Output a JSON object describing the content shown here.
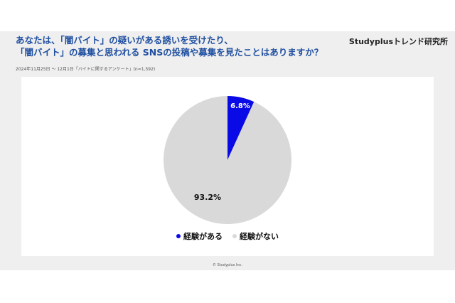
{
  "header": {
    "title_line1": "あなたは、「闇バイト」の疑いがある誘いを受けたり、",
    "title_line2": "「闇バイト」の募集と思われる SNSの投稿や募集を見たことはありますか？",
    "brand": "Studyplusトレンド研究所",
    "source": "2024年11月25日 ～ 12月1日「バイトに関するアンケート」(n=1,592)"
  },
  "footer": {
    "copyright": "© Studyplus Inc."
  },
  "chart_data": {
    "type": "pie",
    "title": "",
    "slices": [
      {
        "label": "経験がある",
        "value": 6.8,
        "display": "6.8%",
        "color": "#0a0ae6"
      },
      {
        "label": "経験がない",
        "value": 93.2,
        "display": "93.2%",
        "color": "#d9d9d9"
      }
    ],
    "legend_position": "bottom"
  }
}
